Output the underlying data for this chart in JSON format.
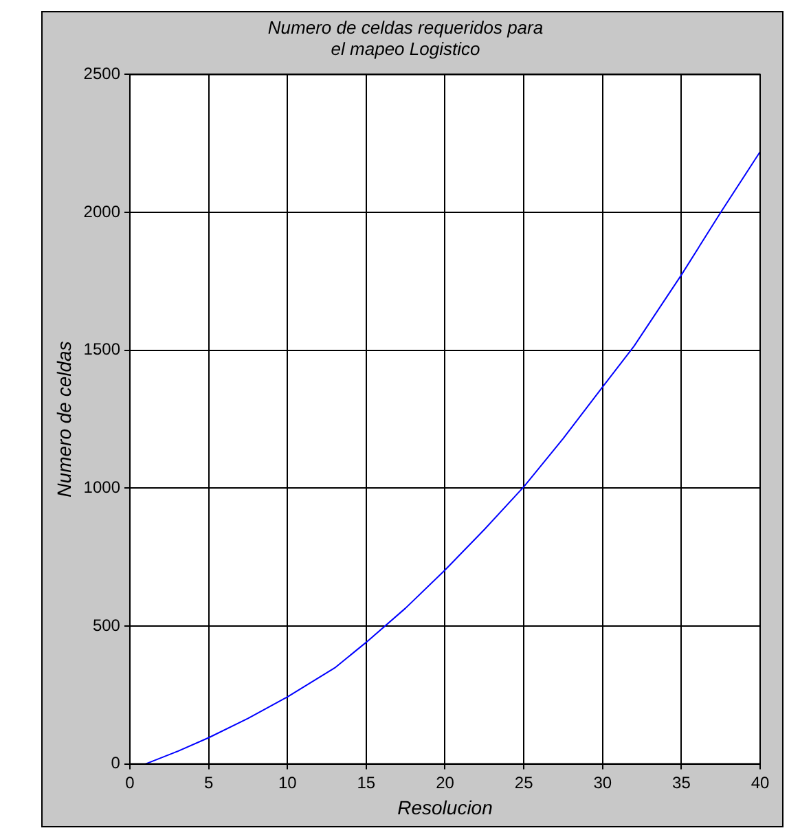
{
  "chart_data": {
    "type": "line",
    "title": "Numero de celdas requeridos para\nel mapeo Logistico",
    "xlabel": "Resolucion",
    "ylabel": "Numero de celdas",
    "x": [
      1,
      3,
      5,
      7.5,
      10,
      13,
      15,
      17.5,
      20,
      22.5,
      25,
      27.5,
      30,
      32,
      35,
      37.5,
      40
    ],
    "series": [
      {
        "color": "#0000ff",
        "values": [
          0,
          45,
          95,
          165,
          243,
          348,
          441,
          565,
          703,
          850,
          1005,
          1180,
          1367,
          1515,
          1773,
          2000,
          2220
        ]
      }
    ],
    "xlim": [
      0,
      40
    ],
    "xticks": [
      0,
      5,
      10,
      15,
      20,
      25,
      30,
      35,
      40
    ],
    "ylim": [
      0,
      2500
    ],
    "yticks": [
      0,
      500,
      1000,
      1500,
      2000,
      2500
    ],
    "grid": true,
    "legend": false,
    "marker": "none",
    "line_style": "solid"
  }
}
